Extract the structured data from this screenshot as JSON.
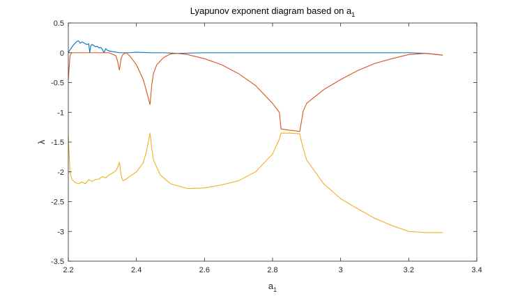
{
  "chart_data": {
    "type": "line",
    "title": "Lyapunov exponent diagram based on a",
    "title_subscript": "1",
    "xlabel": "a",
    "xlabel_subscript": "1",
    "ylabel": "λ",
    "xlim": [
      2.2,
      3.4
    ],
    "ylim": [
      -3.5,
      0.5
    ],
    "xticks": [
      2.2,
      2.4,
      2.6,
      2.8,
      3,
      3.2,
      3.4
    ],
    "xtick_labels": [
      "2.2",
      "2.4",
      "2.6",
      "2.8",
      "3",
      "3.2",
      "3.4"
    ],
    "yticks": [
      0.5,
      0,
      -0.5,
      -1,
      -1.5,
      -2,
      -2.5,
      -3,
      -3.5
    ],
    "ytick_labels": [
      "0.5",
      "0",
      "-0.5",
      "-1",
      "-1.5",
      "-2",
      "-2.5",
      "-3",
      "-3.5"
    ],
    "grid": false,
    "box": true,
    "series": [
      {
        "color": "#0072BD",
        "x": [
          2.2,
          2.205,
          2.21,
          2.215,
          2.22,
          2.225,
          2.23,
          2.235,
          2.24,
          2.245,
          2.25,
          2.255,
          2.26,
          2.263,
          2.266,
          2.27,
          2.275,
          2.28,
          2.285,
          2.29,
          2.295,
          2.3,
          2.305,
          2.31,
          2.315,
          2.32,
          2.33,
          2.34,
          2.35,
          2.36,
          2.38,
          2.4,
          2.42,
          2.44,
          2.48,
          2.52,
          2.6,
          2.7,
          2.8,
          2.9,
          3.0,
          3.1,
          3.15,
          3.2,
          3.25,
          3.3
        ],
        "y": [
          0.0,
          0.05,
          0.09,
          0.13,
          0.16,
          0.19,
          0.2,
          0.16,
          0.18,
          0.17,
          0.15,
          0.14,
          0.15,
          0.0,
          0.12,
          0.14,
          0.12,
          0.1,
          0.11,
          0.08,
          0.09,
          0.06,
          0.0,
          0.07,
          0.04,
          0.03,
          0.02,
          0.01,
          0.0,
          0.0,
          0.0,
          0.01,
          0.005,
          0.0,
          0.0,
          -0.01,
          0.0,
          0.0,
          0.0,
          0.0,
          0.0,
          0.0,
          0.0,
          0.0,
          -0.01,
          -0.04
        ]
      },
      {
        "color": "#D95319",
        "x": [
          2.2,
          2.205,
          2.21,
          2.22,
          2.24,
          2.26,
          2.28,
          2.3,
          2.32,
          2.34,
          2.345,
          2.35,
          2.355,
          2.36,
          2.37,
          2.38,
          2.4,
          2.42,
          2.43,
          2.44,
          2.445,
          2.45,
          2.46,
          2.48,
          2.5,
          2.52,
          2.55,
          2.6,
          2.65,
          2.7,
          2.75,
          2.8,
          2.82,
          2.825,
          2.85,
          2.88,
          2.885,
          2.89,
          2.9,
          2.95,
          3.0,
          3.05,
          3.1,
          3.15,
          3.2,
          3.25,
          3.3
        ],
        "y": [
          -0.45,
          -0.05,
          0.0,
          0.0,
          0.0,
          0.0,
          0.0,
          0.0,
          0.0,
          -0.05,
          -0.15,
          -0.29,
          -0.1,
          -0.03,
          0.0,
          -0.05,
          -0.2,
          -0.45,
          -0.65,
          -0.87,
          -0.55,
          -0.35,
          -0.2,
          -0.08,
          -0.02,
          -0.01,
          -0.03,
          -0.1,
          -0.2,
          -0.35,
          -0.55,
          -0.85,
          -1.0,
          -1.28,
          -1.3,
          -1.32,
          -1.15,
          -0.98,
          -0.85,
          -0.62,
          -0.45,
          -0.3,
          -0.18,
          -0.1,
          -0.03,
          -0.01,
          -0.04
        ]
      },
      {
        "color": "#EDB120",
        "x": [
          2.2,
          2.205,
          2.21,
          2.22,
          2.23,
          2.24,
          2.25,
          2.26,
          2.27,
          2.28,
          2.29,
          2.3,
          2.31,
          2.32,
          2.33,
          2.34,
          2.345,
          2.35,
          2.355,
          2.36,
          2.37,
          2.38,
          2.4,
          2.42,
          2.43,
          2.44,
          2.445,
          2.45,
          2.47,
          2.5,
          2.55,
          2.6,
          2.65,
          2.7,
          2.75,
          2.8,
          2.82,
          2.825,
          2.85,
          2.88,
          2.885,
          2.9,
          2.95,
          3.0,
          3.05,
          3.1,
          3.15,
          3.2,
          3.25,
          3.3
        ],
        "y": [
          -1.4,
          -2.0,
          -2.12,
          -2.18,
          -2.2,
          -2.17,
          -2.2,
          -2.13,
          -2.16,
          -2.13,
          -2.12,
          -2.08,
          -2.1,
          -2.05,
          -2.02,
          -1.98,
          -1.92,
          -1.84,
          -2.05,
          -2.15,
          -2.12,
          -2.08,
          -2.0,
          -1.85,
          -1.65,
          -1.35,
          -1.6,
          -1.8,
          -2.05,
          -2.2,
          -2.28,
          -2.27,
          -2.22,
          -2.15,
          -2.0,
          -1.7,
          -1.45,
          -1.35,
          -1.35,
          -1.36,
          -1.5,
          -1.8,
          -2.2,
          -2.45,
          -2.62,
          -2.78,
          -2.9,
          -3.0,
          -3.02,
          -3.02
        ]
      }
    ]
  }
}
